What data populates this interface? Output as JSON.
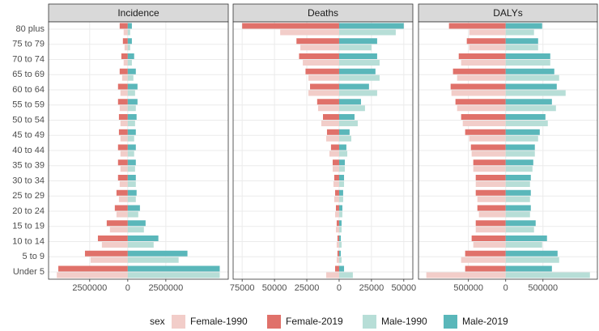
{
  "chart_data": [
    {
      "type": "bar",
      "title": "Incidence",
      "categories": [
        "80 plus",
        "75 to 79",
        "70 to 74",
        "65 to 69",
        "60 to 64",
        "55 to 59",
        "50 to 54",
        "45 to 49",
        "40 to 44",
        "35 to 39",
        "30 to 34",
        "25 to 29",
        "20 to 24",
        "15 to 19",
        "10 to 14",
        "5 to 9",
        "Under 5"
      ],
      "series": [
        {
          "name": "Female-1990",
          "color": "#f2cdc9",
          "values": [
            -270000,
            -210000,
            -270000,
            -370000,
            -480000,
            -530000,
            -480000,
            -480000,
            -480000,
            -480000,
            -530000,
            -580000,
            -740000,
            -1170000,
            -1700000,
            -2440000,
            -4660000
          ]
        },
        {
          "name": "Female-2019",
          "color": "#e0716a",
          "values": [
            -530000,
            -320000,
            -420000,
            -530000,
            -640000,
            -640000,
            -580000,
            -580000,
            -640000,
            -640000,
            -640000,
            -740000,
            -850000,
            -1380000,
            -1960000,
            -2810000,
            -4560000
          ]
        },
        {
          "name": "Male-1990",
          "color": "#b7ded7",
          "values": [
            160000,
            160000,
            270000,
            370000,
            480000,
            530000,
            480000,
            420000,
            420000,
            480000,
            530000,
            530000,
            690000,
            1060000,
            1700000,
            3340000,
            6040000
          ]
        },
        {
          "name": "Male-2019",
          "color": "#5ab7ba",
          "values": [
            270000,
            270000,
            420000,
            530000,
            640000,
            640000,
            580000,
            530000,
            530000,
            530000,
            530000,
            580000,
            800000,
            1170000,
            2010000,
            3920000,
            6040000
          ]
        }
      ],
      "xlim": [
        -5200000,
        6600000
      ],
      "xticks": [
        {
          "value": -2500000,
          "label": "2500000"
        },
        0,
        2500000
      ]
    },
    {
      "type": "bar",
      "title": "Deaths",
      "series": [
        {
          "color": "#f2cdc9",
          "values": [
            -45600,
            -30000,
            -28100,
            -23800,
            -23800,
            -16300,
            -13800,
            -10000,
            -7500,
            -5000,
            -4400,
            -3800,
            -3100,
            -2500,
            -1900,
            -1900,
            -10000
          ]
        },
        {
          "color": "#e0716a",
          "values": [
            -75000,
            -33000,
            -31000,
            -26000,
            -22500,
            -17000,
            -12500,
            -9400,
            -6300,
            -5000,
            -3800,
            -3100,
            -2500,
            -1900,
            -1300,
            -1300,
            -3100
          ]
        },
        {
          "color": "#b7ded7",
          "values": [
            43800,
            25000,
            31300,
            31300,
            29400,
            20000,
            14400,
            9400,
            6300,
            4400,
            3800,
            3100,
            2500,
            1900,
            1900,
            1900,
            10600
          ]
        },
        {
          "color": "#5ab7ba",
          "values": [
            50000,
            29400,
            29400,
            28100,
            23100,
            16900,
            11900,
            8100,
            5600,
            4400,
            3800,
            3100,
            2500,
            1900,
            1300,
            1300,
            3800
          ]
        }
      ],
      "xlim": [
        -82000,
        57000
      ],
      "xticks": [
        {
          "value": -75000,
          "label": "75000"
        },
        {
          "value": -50000,
          "label": "50000"
        },
        {
          "value": -25000,
          "label": "25000"
        },
        0,
        25000,
        50000
      ]
    },
    {
      "type": "bar",
      "title": "DALYs",
      "series": [
        {
          "color": "#f2cdc9",
          "values": [
            -489000,
            -489000,
            -598000,
            -652000,
            -728000,
            -652000,
            -576000,
            -489000,
            -457000,
            -435000,
            -402000,
            -380000,
            -359000,
            -402000,
            -435000,
            -598000,
            -1065000
          ]
        },
        {
          "color": "#e0716a",
          "values": [
            -761000,
            -522000,
            -630000,
            -707000,
            -739000,
            -674000,
            -598000,
            -544000,
            -467000,
            -435000,
            -402000,
            -402000,
            -380000,
            -402000,
            -457000,
            -544000,
            -544000
          ]
        },
        {
          "color": "#b7ded7",
          "values": [
            380000,
            435000,
            598000,
            717000,
            804000,
            674000,
            565000,
            435000,
            391000,
            359000,
            326000,
            326000,
            326000,
            380000,
            489000,
            717000,
            1130000
          ]
        },
        {
          "color": "#5ab7ba",
          "values": [
            489000,
            435000,
            598000,
            652000,
            685000,
            620000,
            533000,
            457000,
            391000,
            370000,
            337000,
            337000,
            337000,
            402000,
            554000,
            696000,
            620000
          ]
        }
      ],
      "xlim": [
        -1170000,
        1230000
      ],
      "xticks": [
        {
          "value": -500000,
          "label": "500000"
        },
        0,
        500000
      ]
    }
  ],
  "legend": {
    "title": "sex"
  }
}
